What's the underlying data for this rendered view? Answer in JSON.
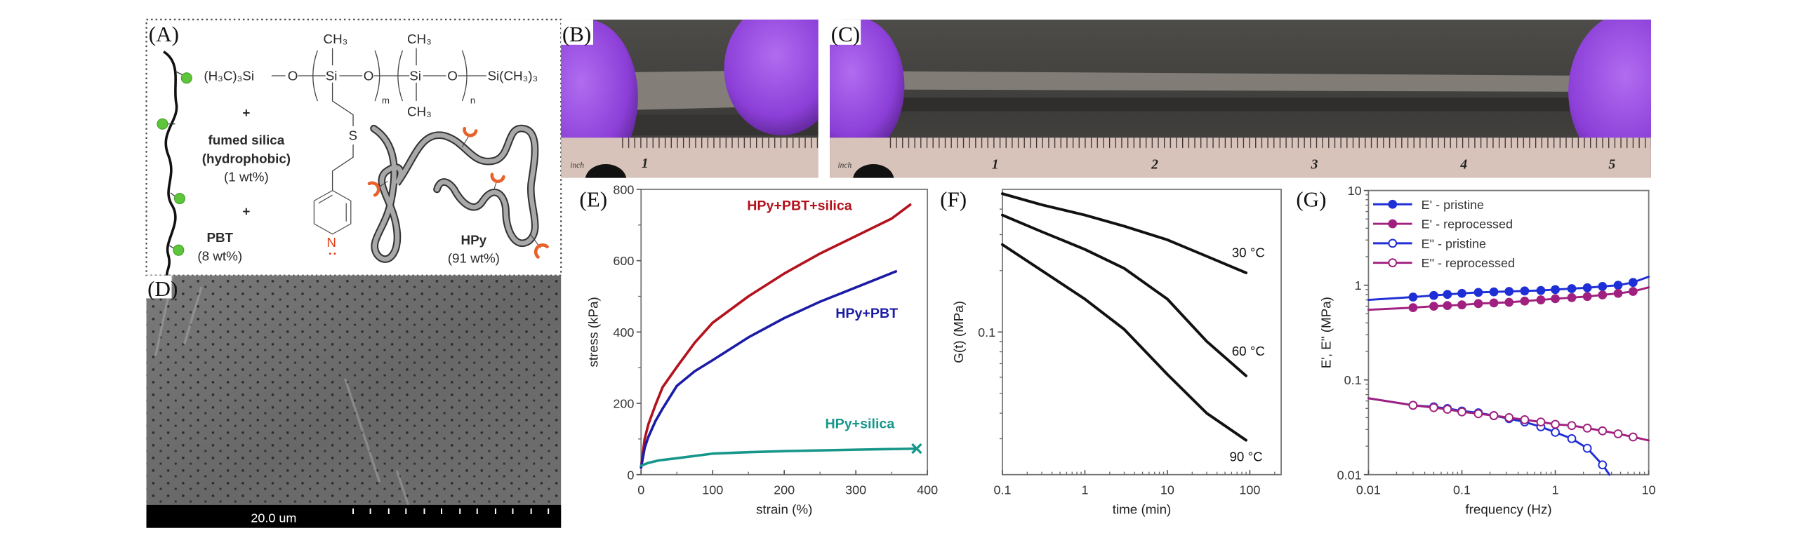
{
  "figure": {
    "panel_labels": {
      "A": "(A)",
      "B": "(B)",
      "C": "(C)",
      "D": "(D)",
      "E": "(E)",
      "F": "(F)",
      "G": "(G)"
    },
    "panel_a": {
      "chem": {
        "end_left": "(H₃C)₃Si",
        "o1": "O",
        "si1": "Si",
        "o2": "O",
        "si2": "Si",
        "o3": "O",
        "end_right": "Si(CH₃)₃",
        "ch3_top1": "CH₃",
        "ch3_top2": "CH₃",
        "ch3_bottom": "CH₃",
        "sub_m": "m",
        "sub_n": "n",
        "sulfur": "S",
        "nitrogen": "N"
      },
      "plus1": "+",
      "silica_name": "fumed silica",
      "silica_note": "(hydrophobic)",
      "silica_wt": "(1 wt%)",
      "plus2": "+",
      "pbt_name": "PBT",
      "pbt_wt": "(8 wt%)",
      "hpy_name": "HPy",
      "hpy_wt": "(91 wt%)",
      "colors": {
        "silica_particle": "#5ec43a",
        "binding_group": "#e8602a",
        "nitrogen": "#e0401a",
        "polymer": "#a8a8a8"
      }
    },
    "panel_b": {
      "ruler_unit": "inch",
      "ruler_numbers": [
        "1"
      ]
    },
    "panel_c": {
      "ruler_unit": "inch",
      "ruler_numbers": [
        "1",
        "2",
        "3",
        "4",
        "5"
      ]
    },
    "panel_d": {
      "scale_bar": "20.0 um"
    }
  },
  "chart_data": [
    {
      "panel": "E",
      "type": "line",
      "xlabel": "strain (%)",
      "ylabel": "stress (kPa)",
      "xscale": "linear",
      "yscale": "linear",
      "xlim": [
        0,
        400
      ],
      "ylim": [
        0,
        800
      ],
      "xticks": [
        0,
        100,
        200,
        300,
        400
      ],
      "xtick_labels": [
        "0",
        "100",
        "200",
        "300",
        "400"
      ],
      "yticks": [
        0,
        200,
        400,
        600,
        800
      ],
      "ytick_labels": [
        "0",
        "200",
        "400",
        "600",
        "800"
      ],
      "grid": false,
      "legend": "inline labels",
      "series": [
        {
          "name": "HPy+PBT+silica",
          "color": "#b3121d",
          "x": [
            0,
            5,
            10,
            20,
            30,
            50,
            75,
            100,
            150,
            200,
            250,
            300,
            350,
            376
          ],
          "y": [
            20,
            100,
            140,
            195,
            245,
            302,
            370,
            426,
            500,
            564,
            620,
            669,
            718,
            757
          ]
        },
        {
          "name": "HPy+PBT",
          "color": "#1b1ba6",
          "x": [
            0,
            5,
            10,
            20,
            30,
            50,
            75,
            100,
            150,
            200,
            250,
            300,
            356
          ],
          "y": [
            20,
            75,
            105,
            150,
            185,
            249,
            290,
            321,
            385,
            439,
            485,
            525,
            570
          ]
        },
        {
          "name": "HPy+silica",
          "color": "#17968a",
          "end_marker": "x",
          "x": [
            0,
            10,
            25,
            50,
            100,
            150,
            200,
            300,
            385
          ],
          "y": [
            25,
            33,
            40,
            46,
            59,
            63,
            66,
            70,
            73
          ]
        }
      ]
    },
    {
      "panel": "F",
      "type": "line",
      "xlabel": "time (min)",
      "ylabel": "G(t) (MPa)",
      "xscale": "log",
      "yscale": "log",
      "xlim": [
        0.1,
        240
      ],
      "ylim": [
        0.02,
        0.5
      ],
      "xticks": [
        0.1,
        1,
        10,
        100
      ],
      "xtick_labels": [
        "0.1",
        "1",
        "10",
        "100"
      ],
      "yticks": [
        0.1
      ],
      "ytick_labels": [
        "0.1"
      ],
      "grid": false,
      "legend": "inline labels",
      "series": [
        {
          "name": "30 °C",
          "color": "#111111",
          "x": [
            0.1,
            0.3,
            1,
            3,
            10,
            30,
            90
          ],
          "y": [
            0.476,
            0.42,
            0.374,
            0.33,
            0.283,
            0.235,
            0.195
          ]
        },
        {
          "name": "60 °C",
          "color": "#111111",
          "x": [
            0.1,
            0.3,
            1,
            3,
            10,
            30,
            90
          ],
          "y": [
            0.374,
            0.31,
            0.254,
            0.205,
            0.145,
            0.09,
            0.061
          ]
        },
        {
          "name": "90 °C",
          "color": "#111111",
          "x": [
            0.1,
            0.3,
            1,
            3,
            10,
            30,
            90
          ],
          "y": [
            0.268,
            0.2,
            0.145,
            0.103,
            0.062,
            0.04,
            0.0295
          ]
        }
      ]
    },
    {
      "panel": "G",
      "type": "line",
      "xlabel": "frequency (Hz)",
      "ylabel": "E', E\" (MPa)",
      "xscale": "log",
      "yscale": "log",
      "xlim": [
        0.01,
        10
      ],
      "ylim": [
        0.01,
        10
      ],
      "xticks": [
        0.01,
        0.1,
        1,
        10
      ],
      "xtick_labels": [
        "0.01",
        "0.1",
        "1",
        "10"
      ],
      "yticks": [
        0.01,
        0.1,
        1,
        10
      ],
      "ytick_labels": [
        "0.01",
        "0.1",
        "1",
        "10"
      ],
      "grid": false,
      "legend": "top-left",
      "series": [
        {
          "name": "E' - pristine",
          "color": "#1f2fd6",
          "marker": "filled-circle",
          "x": [
            0.01,
            0.03,
            0.05,
            0.07,
            0.1,
            0.15,
            0.22,
            0.32,
            0.47,
            0.7,
            1,
            1.5,
            2.2,
            3.2,
            4.7,
            6.8,
            10
          ],
          "y": [
            0.7,
            0.75,
            0.78,
            0.8,
            0.82,
            0.84,
            0.85,
            0.86,
            0.87,
            0.88,
            0.9,
            0.92,
            0.94,
            0.97,
            1.0,
            1.07,
            1.23
          ]
        },
        {
          "name": "E' - reprocessed",
          "color": "#a0207f",
          "marker": "filled-circle",
          "x": [
            0.01,
            0.03,
            0.05,
            0.07,
            0.1,
            0.15,
            0.22,
            0.32,
            0.47,
            0.7,
            1,
            1.5,
            2.2,
            3.2,
            4.7,
            6.8,
            10
          ],
          "y": [
            0.55,
            0.58,
            0.6,
            0.61,
            0.62,
            0.64,
            0.65,
            0.66,
            0.68,
            0.7,
            0.72,
            0.74,
            0.76,
            0.79,
            0.82,
            0.86,
            0.95
          ]
        },
        {
          "name": "E\" - pristine",
          "color": "#1f2fd6",
          "marker": "open-circle",
          "x": [
            0.01,
            0.03,
            0.05,
            0.07,
            0.1,
            0.15,
            0.22,
            0.32,
            0.47,
            0.7,
            1,
            1.5,
            2.2,
            3.2,
            3.8
          ],
          "y": [
            0.064,
            0.054,
            0.052,
            0.05,
            0.047,
            0.045,
            0.042,
            0.039,
            0.036,
            0.032,
            0.028,
            0.024,
            0.019,
            0.0127,
            0.01
          ]
        },
        {
          "name": "E\" - reprocessed",
          "color": "#a0207f",
          "marker": "open-circle",
          "x": [
            0.01,
            0.03,
            0.05,
            0.07,
            0.1,
            0.15,
            0.22,
            0.32,
            0.47,
            0.7,
            1,
            1.5,
            2.2,
            3.2,
            4.7,
            6.8,
            10
          ],
          "y": [
            0.064,
            0.054,
            0.051,
            0.049,
            0.046,
            0.044,
            0.042,
            0.04,
            0.038,
            0.036,
            0.034,
            0.033,
            0.031,
            0.029,
            0.027,
            0.025,
            0.023
          ]
        }
      ]
    }
  ]
}
